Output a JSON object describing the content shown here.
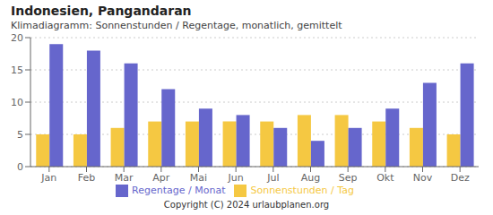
{
  "chart_data": {
    "type": "bar",
    "title": "Indonesien, Pangandaran",
    "subtitle": "Klimadiagramm: Sonnenstunden / Regentage, monatlich, gemittelt",
    "categories": [
      "Jan",
      "Feb",
      "Mar",
      "Apr",
      "Mai",
      "Jun",
      "Jul",
      "Aug",
      "Sep",
      "Okt",
      "Nov",
      "Dez"
    ],
    "series": [
      {
        "name": "Sonnenstunden / Tag",
        "color": "#F5C842",
        "values": [
          5,
          5,
          6,
          7,
          7,
          7,
          7,
          8,
          8,
          7,
          6,
          5
        ]
      },
      {
        "name": "Regentage / Monat",
        "color": "#6666CC",
        "values": [
          19,
          18,
          16,
          12,
          9,
          8,
          6,
          4,
          6,
          9,
          13,
          16
        ]
      }
    ],
    "ylim": [
      0,
      20
    ],
    "yticks": [
      0,
      5,
      10,
      15,
      20
    ],
    "grid": true,
    "legend": "bottom",
    "annotations": [
      "Copyright (C) 2024 urlaubplanen.org"
    ]
  }
}
